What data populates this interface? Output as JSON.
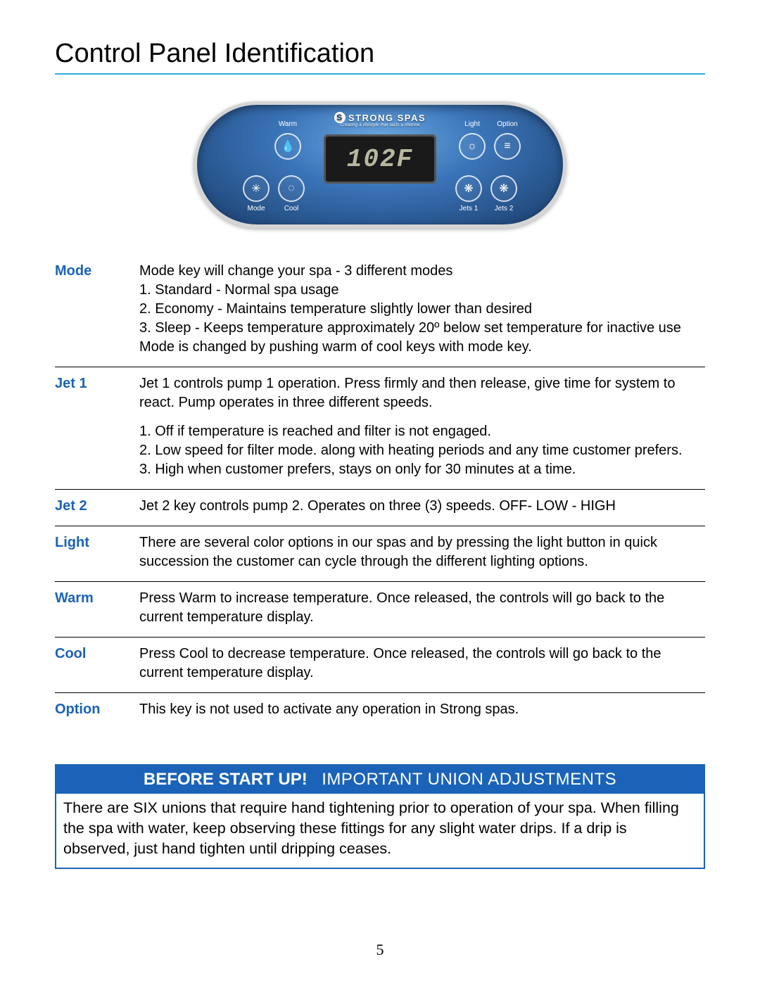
{
  "title": "Control Panel Identification",
  "colors": {
    "accent": "#29abe2",
    "label": "#1a63b8",
    "callout_bg": "#1a63b8",
    "callout_text": "#ffffff",
    "text": "#000000",
    "page_bg": "#ffffff"
  },
  "panel": {
    "brand_name": "STRONG SPAS",
    "brand_tagline": "Creating a lifestyle that lasts a lifetime",
    "lcd_display": "102F",
    "buttons": {
      "warm": "Warm",
      "mode": "Mode",
      "cool": "Cool",
      "light": "Light",
      "option": "Option",
      "jets1": "Jets 1",
      "jets2": "Jets 2"
    }
  },
  "rows": {
    "mode": {
      "key": "Mode",
      "line1": "Mode key will change your spa - 3 different modes",
      "line2": "1. Standard - Normal spa usage",
      "line3": "2. Economy - Maintains temperature slightly lower than desired",
      "line4": "3. Sleep - Keeps temperature approximately 20º below set temperature for inactive use",
      "line5": "Mode is changed by pushing warm of cool keys with mode key."
    },
    "jet1": {
      "key": "Jet 1",
      "para1": "Jet 1 controls pump 1 operation. Press firmly and then release, give time for system to react. Pump operates in three different speeds.",
      "line1": "1. Off if temperature is reached and filter is not engaged.",
      "line2": "2. Low speed for filter mode. along with heating periods and any time customer prefers.",
      "line3": "3. High when customer prefers, stays on only for 30 minutes at a time."
    },
    "jet2": {
      "key": "Jet 2",
      "desc": "Jet 2 key controls pump 2. Operates on three (3) speeds. OFF- LOW - HIGH"
    },
    "light": {
      "key": "Light",
      "desc": "There are several color options in our spas and by pressing the light button in quick succession the customer can cycle through the different lighting options."
    },
    "warm": {
      "key": "Warm",
      "desc": "Press Warm to increase temperature. Once released, the controls will go back to the current temperature display."
    },
    "cool": {
      "key": "Cool",
      "desc": "Press Cool to decrease temperature. Once released, the controls will go back to the current temperature display."
    },
    "option": {
      "key": "Option",
      "desc": "This key is not used to activate any operation in Strong spas."
    }
  },
  "callout": {
    "header_bold": "BEFORE START UP!",
    "header_light": "IMPORTANT UNION ADJUSTMENTS",
    "body": "There are SIX unions that require hand tightening prior to operation of your spa. When filling the spa with water, keep observing these fittings for any slight water drips. If a drip is observed, just hand tighten until dripping ceases."
  },
  "page_number": "5"
}
